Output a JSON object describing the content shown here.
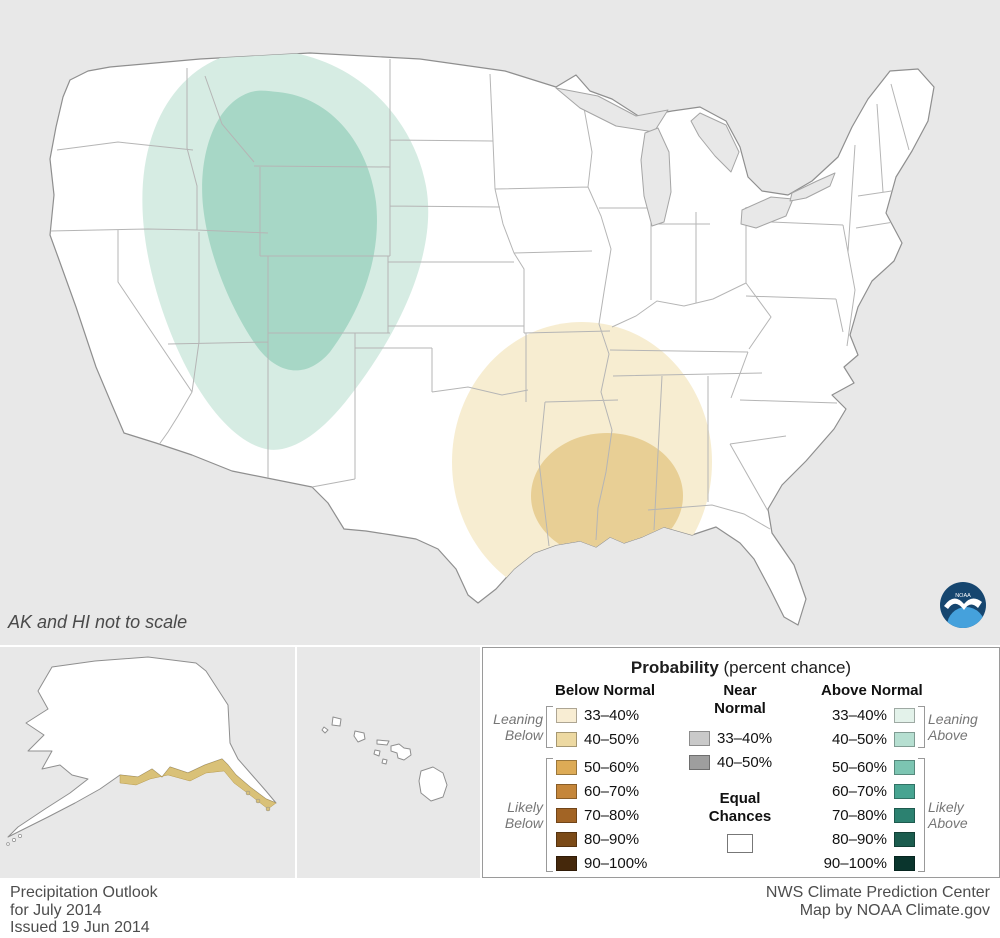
{
  "map": {
    "scale_note": "AK and HI not to scale",
    "logo_text": "NOAA"
  },
  "colors": {
    "above_outer": "#d6ece3",
    "above_inner": "#a7d7c6",
    "below_outer": "#f7edd1",
    "below_inner": "#e8cf95",
    "alaska_below_coast": "#d9c178"
  },
  "legend": {
    "title": "Probability",
    "title_suffix": " (percent chance)",
    "below": {
      "header": "Below Normal",
      "leaning_label": "Leaning Below",
      "likely_label": "Likely Below",
      "leaning_rows": [
        {
          "label": "33–40%",
          "color": "#f8edd3"
        },
        {
          "label": "40–50%",
          "color": "#edd9a2"
        }
      ],
      "likely_rows": [
        {
          "label": "50–60%",
          "color": "#ddab56"
        },
        {
          "label": "60–70%",
          "color": "#c5863a"
        },
        {
          "label": "70–80%",
          "color": "#a26425"
        },
        {
          "label": "80–90%",
          "color": "#7b4a17"
        },
        {
          "label": "90–100%",
          "color": "#45280b"
        }
      ]
    },
    "near": {
      "header": "Near Normal",
      "rows": [
        {
          "label": "33–40%",
          "color": "#c9c9c9"
        },
        {
          "label": "40–50%",
          "color": "#9e9e9e"
        }
      ],
      "equal_label": "Equal Chances",
      "equal_color": "#ffffff"
    },
    "above": {
      "header": "Above Normal",
      "leaning_label": "Leaning Above",
      "likely_label": "Likely Above",
      "leaning_rows": [
        {
          "label": "33–40%",
          "color": "#e3f2ea"
        },
        {
          "label": "40–50%",
          "color": "#b6dfd1"
        }
      ],
      "likely_rows": [
        {
          "label": "50–60%",
          "color": "#7cc5b2"
        },
        {
          "label": "60–70%",
          "color": "#47a491"
        },
        {
          "label": "70–80%",
          "color": "#2c8170"
        },
        {
          "label": "80–90%",
          "color": "#1b5c4e"
        },
        {
          "label": "90–100%",
          "color": "#0a352d"
        }
      ]
    }
  },
  "footer": {
    "left_lines": [
      "Precipitation Outlook",
      "for July 2014",
      "Issued 19 Jun 2014"
    ],
    "right_lines": [
      "NWS Climate Prediction Center",
      "Map by NOAA Climate.gov"
    ]
  }
}
